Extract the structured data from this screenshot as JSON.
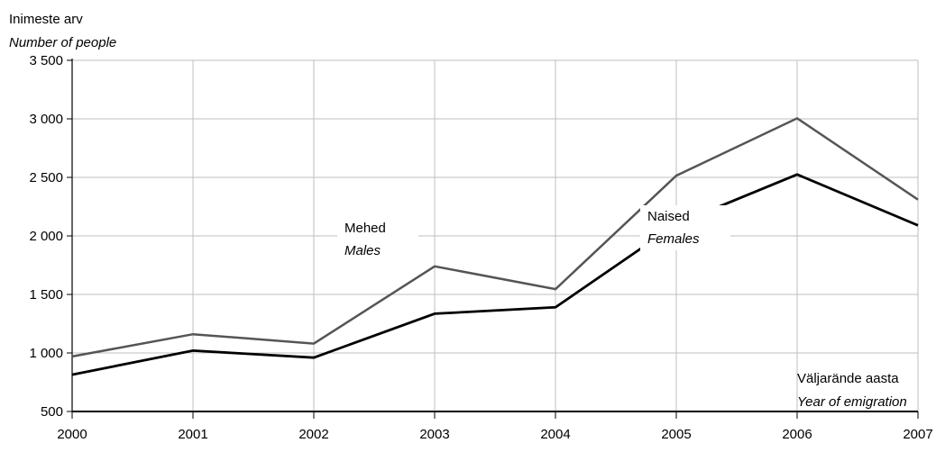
{
  "chart_data": {
    "type": "line",
    "ylabel": "Inimeste arv",
    "ylabel_en": "Number of people",
    "xlabel": "Väljarände aasta",
    "xlabel_en": "Year of emigration",
    "x": [
      "2000",
      "2001",
      "2002",
      "2003",
      "2004",
      "2005",
      "2006",
      "2007"
    ],
    "ylim": [
      500,
      3500
    ],
    "yticks": [
      500,
      1000,
      1500,
      2000,
      2500,
      3000,
      3500
    ],
    "ytick_labels": [
      "500",
      "1 000",
      "1 500",
      "2 000",
      "2 500",
      "3 000",
      "3 500"
    ],
    "grid": true,
    "series": [
      {
        "name": "Mehed",
        "name_en": "Males",
        "color": "#555555",
        "values": [
          970,
          1160,
          1080,
          1740,
          1545,
          2515,
          3005,
          2310
        ]
      },
      {
        "name": "Naised",
        "name_en": "Females",
        "color": "#000000",
        "values": [
          815,
          1020,
          960,
          1335,
          1390,
          2100,
          2525,
          2090
        ]
      }
    ]
  }
}
